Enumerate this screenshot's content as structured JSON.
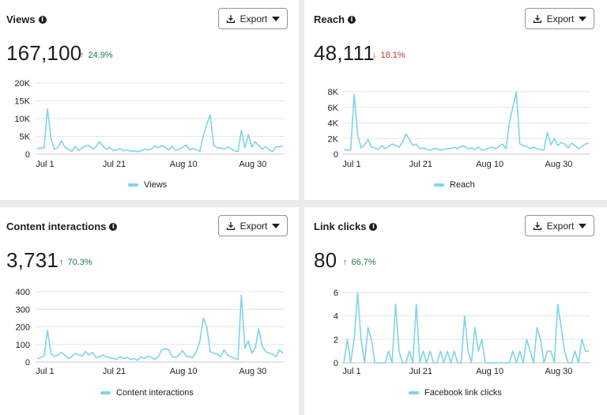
{
  "export_label": "Export",
  "cards": [
    {
      "title": "Views",
      "value": "167,100",
      "change": "24.9%",
      "direction": "up",
      "legend": "Views",
      "chart_data": {
        "type": "line",
        "y_ticks": [
          "0",
          "5K",
          "10K",
          "15K",
          "20K"
        ],
        "ylim": [
          0,
          20000
        ],
        "x_tick_labels": [
          "Jul 1",
          "Jul 21",
          "Aug 10",
          "Aug 30"
        ],
        "x_tick_index": [
          0,
          20,
          40,
          60
        ],
        "series": [
          {
            "name": "Views",
            "values": [
              1600,
              1700,
              1700,
              12700,
              4500,
              1400,
              1900,
              3700,
              2000,
              1300,
              800,
              2200,
              1000,
              1800,
              2300,
              2500,
              1400,
              2100,
              3500,
              2300,
              1300,
              1900,
              1000,
              1200,
              1600,
              900,
              1200,
              800,
              900,
              700,
              900,
              1400,
              1200,
              1500,
              2300,
              1800,
              2400,
              1900,
              1200,
              2200,
              1100,
              1400,
              1900,
              2600,
              1200,
              1600,
              1200,
              800,
              5300,
              8400,
              11000,
              2500,
              1800,
              1700,
              1400,
              2000,
              1500,
              1000,
              700,
              6700,
              1800,
              5500,
              2000,
              3500,
              2400,
              1400,
              2200,
              1200,
              700,
              2000,
              2100,
              2300
            ]
          }
        ]
      }
    },
    {
      "title": "Reach",
      "value": "48,111",
      "change": "18.1%",
      "direction": "down",
      "legend": "Reach",
      "chart_data": {
        "type": "line",
        "y_ticks": [
          "0",
          "2K",
          "4K",
          "6K",
          "8K"
        ],
        "ylim": [
          0,
          8000
        ],
        "x_tick_labels": [
          "Jul 1",
          "Jul 21",
          "Aug 10",
          "Aug 30"
        ],
        "x_tick_index": [
          0,
          20,
          40,
          60
        ],
        "series": [
          {
            "name": "Reach",
            "values": [
              600,
              500,
              500,
              7700,
              2500,
              800,
              1200,
              1900,
              900,
              800,
              600,
              1100,
              700,
              1000,
              1300,
              1100,
              900,
              1500,
              2600,
              1900,
              1100,
              1300,
              700,
              800,
              600,
              500,
              700,
              700,
              500,
              600,
              700,
              700,
              900,
              700,
              1000,
              1000,
              700,
              800,
              600,
              900,
              500,
              600,
              800,
              900,
              700,
              1000,
              1300,
              700,
              4000,
              6100,
              8000,
              1300,
              1100,
              1000,
              700,
              900,
              700,
              600,
              500,
              2800,
              1200,
              2000,
              1100,
              1500,
              1300,
              800,
              1400,
              1100,
              700,
              1000,
              1300,
              1400
            ]
          }
        ]
      }
    },
    {
      "title": "Content interactions",
      "value": "3,731",
      "change": "70.3%",
      "direction": "up",
      "legend": "Content interactions",
      "chart_data": {
        "type": "line",
        "y_ticks": [
          "0",
          "100",
          "200",
          "300",
          "400"
        ],
        "ylim": [
          0,
          400
        ],
        "x_tick_labels": [
          "Jul 1",
          "Jul 21",
          "Aug 10",
          "Aug 30"
        ],
        "x_tick_index": [
          0,
          20,
          40,
          60
        ],
        "series": [
          {
            "name": "Content interactions",
            "values": [
              20,
              25,
              35,
              180,
              50,
              30,
              40,
              55,
              40,
              20,
              30,
              50,
              40,
              35,
              60,
              40,
              55,
              25,
              30,
              40,
              30,
              25,
              20,
              15,
              30,
              20,
              25,
              15,
              20,
              10,
              30,
              20,
              35,
              25,
              15,
              30,
              70,
              75,
              70,
              30,
              25,
              40,
              65,
              35,
              30,
              25,
              60,
              120,
              250,
              200,
              60,
              50,
              45,
              30,
              70,
              40,
              30,
              20,
              15,
              380,
              80,
              120,
              50,
              80,
              190,
              90,
              60,
              50,
              45,
              30,
              70,
              50
            ]
          }
        ]
      }
    },
    {
      "title": "Link clicks",
      "value": "80",
      "change": "66.7%",
      "direction": "up",
      "legend": "Facebook link clicks",
      "chart_data": {
        "type": "line",
        "y_ticks": [
          "0",
          "2",
          "4",
          "6"
        ],
        "ylim": [
          0,
          6
        ],
        "x_tick_labels": [
          "Jul 1",
          "Jul 21",
          "Aug 10",
          "Aug 30"
        ],
        "x_tick_index": [
          0,
          20,
          40,
          60
        ],
        "series": [
          {
            "name": "Facebook link clicks",
            "values": [
              0,
              2,
              0,
              2,
              6,
              2,
              0,
              3,
              2,
              0,
              0,
              0,
              0,
              1,
              0,
              5,
              1,
              0,
              0,
              1,
              0,
              5,
              0,
              1,
              0,
              1,
              0,
              0,
              1,
              0,
              1,
              0,
              1,
              0,
              0,
              4,
              1,
              0,
              3,
              1,
              2,
              0,
              0,
              0,
              0,
              0,
              0,
              0,
              0,
              1,
              0,
              1,
              0,
              2,
              1,
              0,
              3,
              2,
              0,
              1,
              1,
              0,
              5,
              3,
              1,
              0,
              0,
              1,
              0,
              2,
              1,
              1
            ]
          }
        ]
      }
    }
  ]
}
